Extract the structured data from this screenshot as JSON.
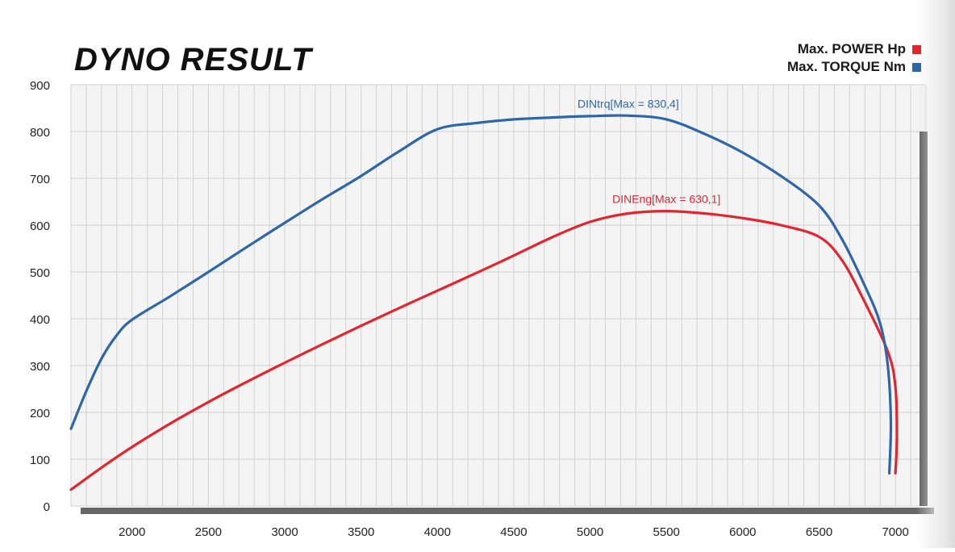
{
  "chart_data": {
    "type": "line",
    "title": "DYNO RESULT",
    "xlabel": "",
    "ylabel": "",
    "xlim": [
      1600,
      7200
    ],
    "ylim": [
      0,
      900
    ],
    "x_ticks": [
      2000,
      2500,
      3000,
      3500,
      4000,
      4500,
      5000,
      5500,
      6000,
      6500,
      7000
    ],
    "y_ticks": [
      0,
      100,
      200,
      300,
      400,
      500,
      600,
      700,
      800,
      900
    ],
    "grid": true,
    "legend_position": "top-right",
    "series": [
      {
        "name": "Max. POWER Hp",
        "color": "#e0262e",
        "annotation": "DINEng[Max = 630,1]",
        "points": [
          [
            1600,
            35
          ],
          [
            1800,
            82
          ],
          [
            2000,
            126
          ],
          [
            2250,
            176
          ],
          [
            2500,
            222
          ],
          [
            2750,
            265
          ],
          [
            3000,
            306
          ],
          [
            3250,
            346
          ],
          [
            3500,
            385
          ],
          [
            3750,
            423
          ],
          [
            4000,
            460
          ],
          [
            4250,
            497
          ],
          [
            4500,
            535
          ],
          [
            4750,
            574
          ],
          [
            5000,
            607
          ],
          [
            5250,
            625
          ],
          [
            5500,
            630
          ],
          [
            5750,
            625
          ],
          [
            6000,
            615
          ],
          [
            6250,
            600
          ],
          [
            6500,
            575
          ],
          [
            6650,
            525
          ],
          [
            6800,
            435
          ],
          [
            6950,
            330
          ],
          [
            7000,
            255
          ],
          [
            7010,
            150
          ],
          [
            7000,
            70
          ]
        ]
      },
      {
        "name": "Max. TORQUE Nm",
        "color": "#2e67a8",
        "annotation": "DINtrq[Max = 830,4]",
        "points": [
          [
            1600,
            165
          ],
          [
            1700,
            245
          ],
          [
            1800,
            315
          ],
          [
            1900,
            365
          ],
          [
            2000,
            398
          ],
          [
            2250,
            448
          ],
          [
            2500,
            500
          ],
          [
            2750,
            553
          ],
          [
            3000,
            605
          ],
          [
            3250,
            656
          ],
          [
            3500,
            705
          ],
          [
            3750,
            758
          ],
          [
            4000,
            805
          ],
          [
            4250,
            818
          ],
          [
            4500,
            826
          ],
          [
            4750,
            830
          ],
          [
            5000,
            833
          ],
          [
            5250,
            834
          ],
          [
            5500,
            826
          ],
          [
            5750,
            795
          ],
          [
            6000,
            755
          ],
          [
            6250,
            705
          ],
          [
            6500,
            642
          ],
          [
            6650,
            570
          ],
          [
            6800,
            470
          ],
          [
            6900,
            390
          ],
          [
            6950,
            300
          ],
          [
            6970,
            180
          ],
          [
            6960,
            70
          ]
        ]
      }
    ]
  }
}
